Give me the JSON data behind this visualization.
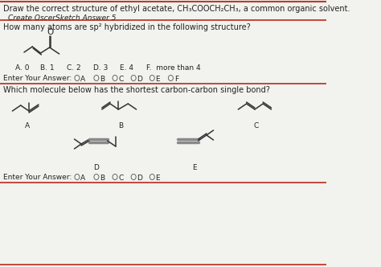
{
  "bg_color": "#f2f2ee",
  "divider_color": "#c0392b",
  "text_color": "#222222",
  "title1": "Draw the correct structure of ethyl acetate, CH₃COOCH₂CH₃, a common organic solvent.",
  "subtitle1": "Create OscerSketch Answer 5",
  "q2_text": "How many atoms are sp² hybridized in the following structure?",
  "q2_options": [
    "A. 0",
    "B. 1",
    "C. 2",
    "D. 3",
    "E. 4",
    "F.  more than 4"
  ],
  "q2_answer_label": "Enter Your Answer:",
  "q2_radio_labels": [
    "A",
    "B",
    "C",
    "D",
    "E",
    "F"
  ],
  "q3_text": "Which molecule below has the shortest carbon-carbon single bond?",
  "q3_labels": [
    "A",
    "B",
    "C",
    "D",
    "E"
  ],
  "q3_answer_label": "Enter Your Answer:",
  "q3_radio_labels": [
    "A",
    "B",
    "C",
    "D",
    "E"
  ]
}
